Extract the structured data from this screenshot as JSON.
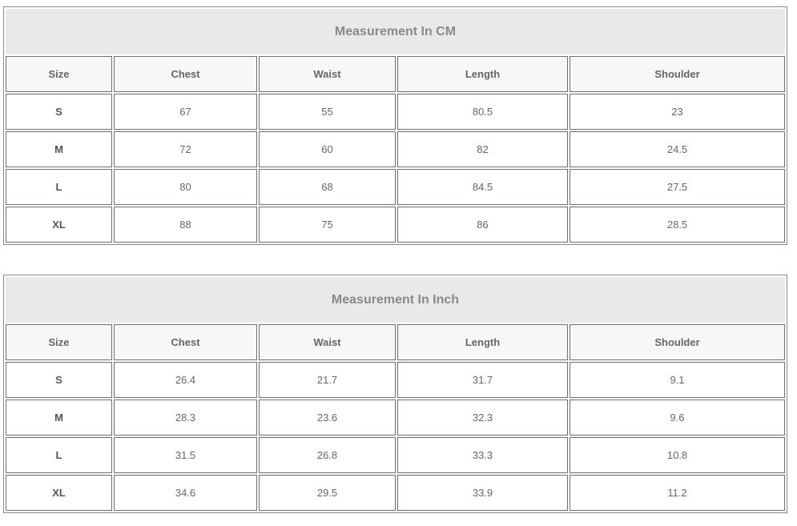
{
  "tables": [
    {
      "title": "Measurement In CM",
      "headers": [
        "Size",
        "Chest",
        "Waist",
        "Length",
        "Shoulder"
      ],
      "rows": [
        [
          "S",
          "67",
          "55",
          "80.5",
          "23"
        ],
        [
          "M",
          "72",
          "60",
          "82",
          "24.5"
        ],
        [
          "L",
          "80",
          "68",
          "84.5",
          "27.5"
        ],
        [
          "XL",
          "88",
          "75",
          "86",
          "28.5"
        ]
      ]
    },
    {
      "title": "Measurement In Inch",
      "headers": [
        "Size",
        "Chest",
        "Waist",
        "Length",
        "Shoulder"
      ],
      "rows": [
        [
          "S",
          "26.4",
          "21.7",
          "31.7",
          "9.1"
        ],
        [
          "M",
          "28.3",
          "23.6",
          "32.3",
          "9.6"
        ],
        [
          "L",
          "31.5",
          "26.8",
          "33.3",
          "10.8"
        ],
        [
          "XL",
          "34.6",
          "29.5",
          "33.9",
          "11.2"
        ]
      ]
    }
  ]
}
